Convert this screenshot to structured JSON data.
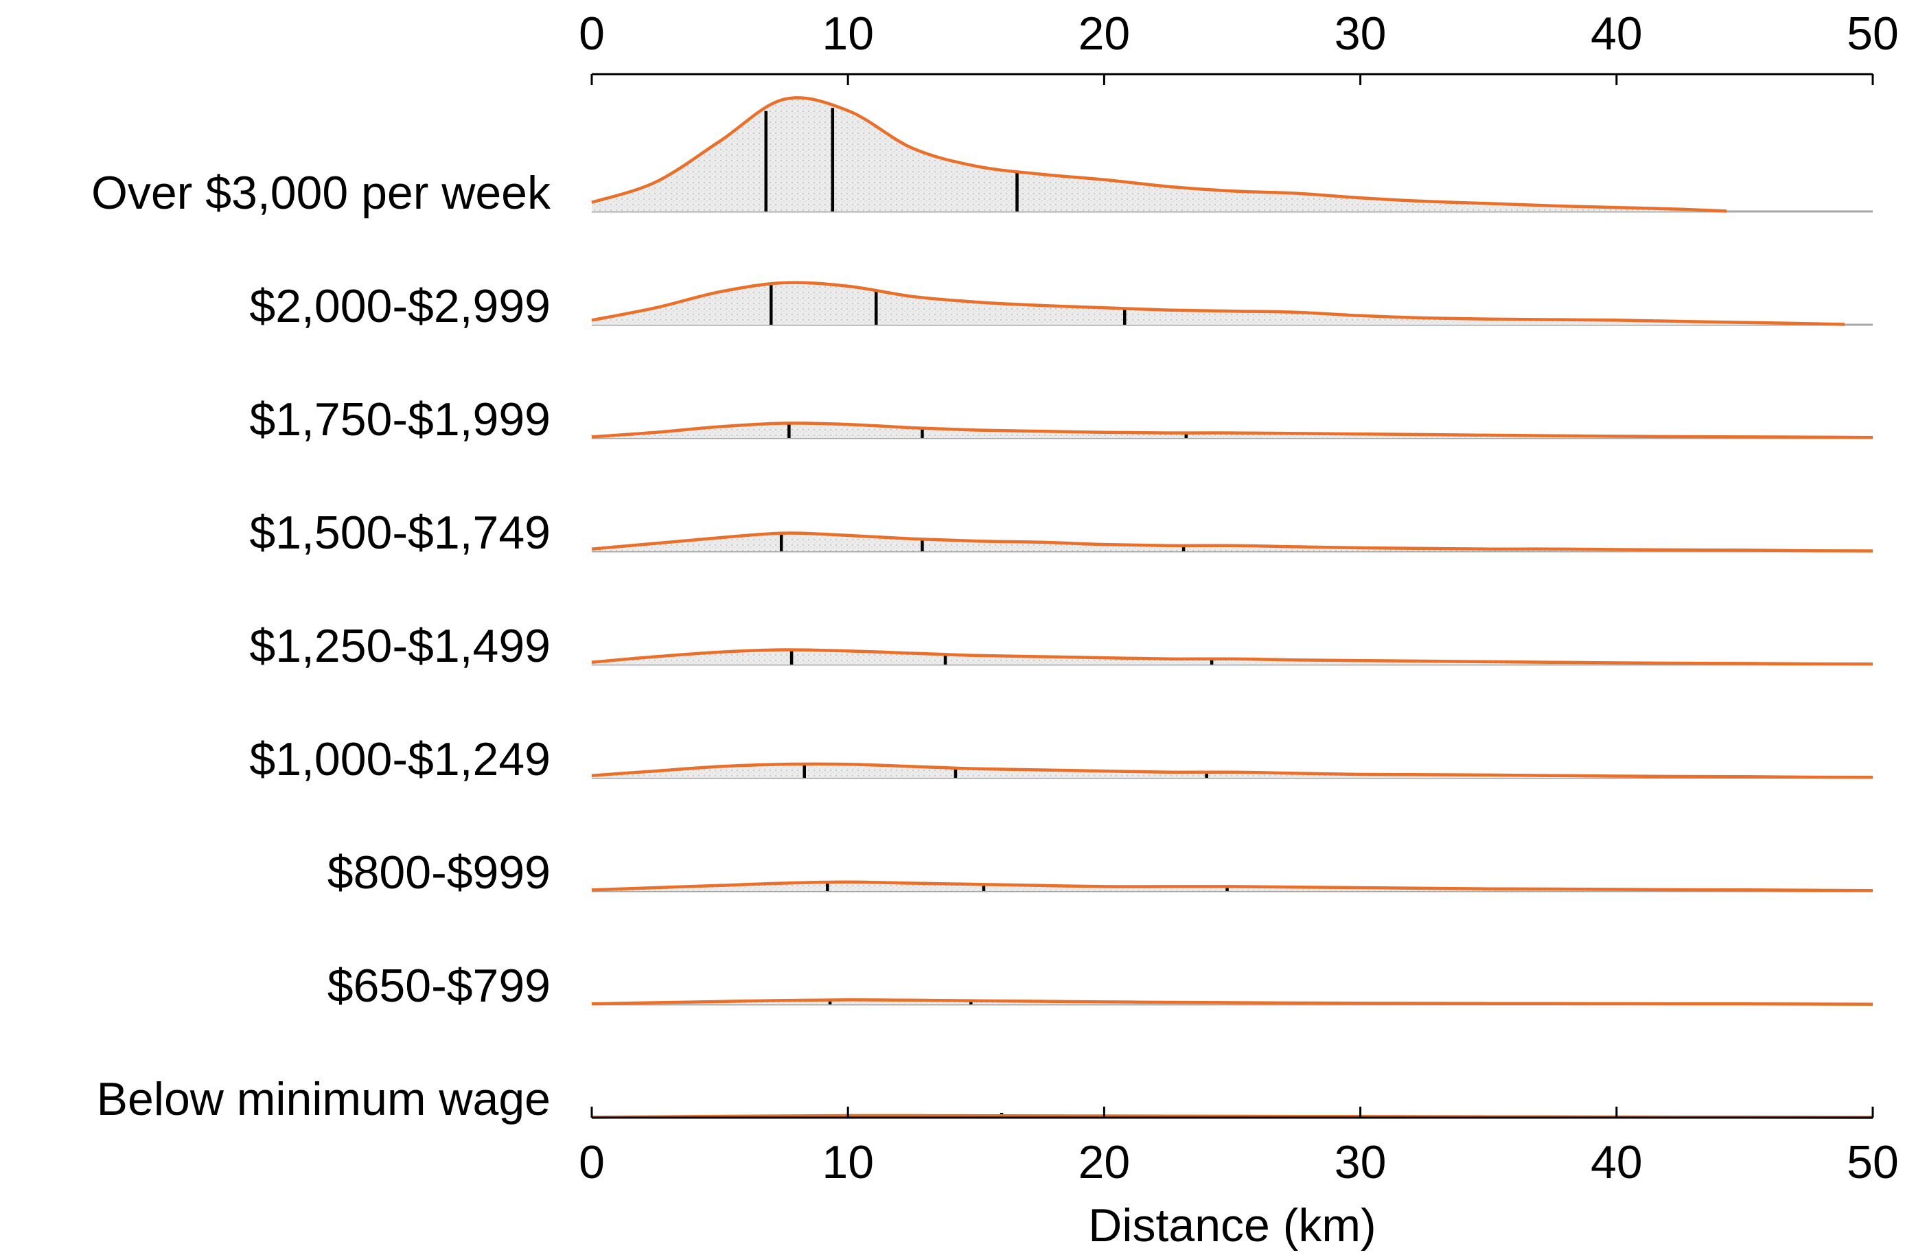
{
  "chart_data": {
    "type": "ridgeline",
    "xlabel": "Distance (km)",
    "xlim": [
      0,
      50
    ],
    "xticks": [
      0,
      10,
      20,
      30,
      40,
      50
    ],
    "colors": {
      "line": "#e8702a",
      "fill": "#e6e6e6",
      "baseline": "#a6a6a6",
      "quartile": "#000000"
    },
    "x": [
      0,
      2.5,
      5,
      7.5,
      10,
      12.5,
      15,
      17.5,
      20,
      22.5,
      25,
      27.5,
      30,
      32.5,
      35,
      37.5,
      40,
      42.5,
      45,
      47.5,
      50
    ],
    "series": [
      {
        "name": "Over $3,000 per week",
        "x_max": 44.3,
        "density": [
          0.08,
          0.26,
          0.62,
          0.99,
          0.89,
          0.56,
          0.4,
          0.33,
          0.28,
          0.22,
          0.18,
          0.16,
          0.12,
          0.09,
          0.07,
          0.05,
          0.035,
          0.02,
          0.01,
          null,
          null
        ],
        "quartiles": [
          6.8,
          9.4,
          16.6
        ]
      },
      {
        "name": "$2,000-$2,999",
        "x_max": 48.9,
        "density": [
          0.04,
          0.15,
          0.29,
          0.37,
          0.34,
          0.25,
          0.2,
          0.17,
          0.15,
          0.13,
          0.12,
          0.11,
          0.08,
          0.06,
          0.05,
          0.045,
          0.04,
          0.03,
          0.02,
          0.01,
          null
        ],
        "quartiles": [
          7.0,
          11.1,
          20.8
        ]
      },
      {
        "name": "$1,750-$1,999",
        "x_max": 50,
        "density": [
          0.01,
          0.05,
          0.1,
          0.13,
          0.12,
          0.09,
          0.07,
          0.06,
          0.05,
          0.045,
          0.045,
          0.04,
          0.035,
          0.03,
          0.025,
          0.02,
          0.015,
          0.012,
          0.01,
          0.008,
          0.005
        ],
        "quartiles": [
          7.7,
          12.9,
          23.2
        ]
      },
      {
        "name": "$1,500-$1,749",
        "x_max": 50,
        "density": [
          0.02,
          0.07,
          0.12,
          0.16,
          0.14,
          0.11,
          0.09,
          0.08,
          0.06,
          0.05,
          0.05,
          0.04,
          0.03,
          0.025,
          0.02,
          0.02,
          0.015,
          0.012,
          0.01,
          0.005,
          0.003
        ],
        "quartiles": [
          7.4,
          12.9,
          23.1
        ]
      },
      {
        "name": "$1,250-$1,499",
        "x_max": 50,
        "density": [
          0.02,
          0.07,
          0.11,
          0.13,
          0.12,
          0.1,
          0.08,
          0.07,
          0.06,
          0.05,
          0.05,
          0.04,
          0.035,
          0.03,
          0.025,
          0.02,
          0.015,
          0.012,
          0.01,
          0.006,
          0.004
        ],
        "quartiles": [
          7.8,
          13.8,
          24.2
        ]
      },
      {
        "name": "$1,000-$1,249",
        "x_max": 50,
        "density": [
          0.02,
          0.06,
          0.1,
          0.12,
          0.12,
          0.1,
          0.08,
          0.07,
          0.06,
          0.05,
          0.05,
          0.04,
          0.03,
          0.028,
          0.025,
          0.02,
          0.015,
          0.012,
          0.01,
          0.006,
          0.004
        ],
        "quartiles": [
          8.3,
          14.2,
          24.0
        ]
      },
      {
        "name": "$800-$999",
        "x_max": 50,
        "density": [
          0.01,
          0.03,
          0.05,
          0.07,
          0.08,
          0.07,
          0.06,
          0.05,
          0.04,
          0.04,
          0.04,
          0.035,
          0.03,
          0.025,
          0.02,
          0.018,
          0.015,
          0.012,
          0.01,
          0.007,
          0.005
        ],
        "quartiles": [
          9.2,
          15.3,
          24.8
        ]
      },
      {
        "name": "$650-$799",
        "x_max": 50,
        "density": [
          0.005,
          0.015,
          0.025,
          0.035,
          0.04,
          0.037,
          0.032,
          0.027,
          0.022,
          0.018,
          0.015,
          0.012,
          0.01,
          0.009,
          0.008,
          0.007,
          0.006,
          0.005,
          0.004,
          0.003,
          0.002
        ],
        "quartiles": [
          9.3,
          14.8
        ]
      },
      {
        "name": "Below minimum wage",
        "x_max": 50,
        "density": [
          0.003,
          0.008,
          0.012,
          0.015,
          0.018,
          0.018,
          0.017,
          0.016,
          0.015,
          0.014,
          0.013,
          0.011,
          0.01,
          0.009,
          0.008,
          0.007,
          0.006,
          0.005,
          0.004,
          0.003,
          0.002
        ],
        "quartiles": [
          16.0
        ]
      }
    ]
  }
}
